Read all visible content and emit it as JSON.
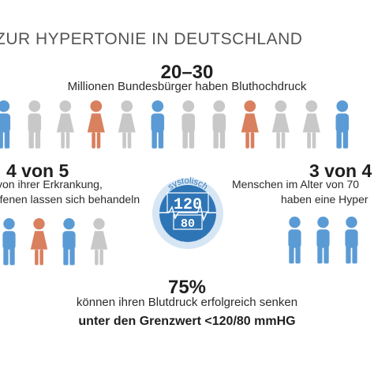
{
  "header": {
    "title": "ZUR HYPERTONIE IN DEUTSCHLAND"
  },
  "stat_top": {
    "value": "20–30",
    "text": "Millionen Bundesbürger haben Bluthochdruck"
  },
  "stat_left": {
    "value": "4 von 5",
    "line1": "von ihrer Erkrankung,",
    "line2": "ffenen lassen sich behandeln"
  },
  "stat_right": {
    "value": "3 von 4",
    "line1": "Menschen im Alter von 70",
    "line2": "haben eine Hyper"
  },
  "gauge": {
    "top_label": "systolisch",
    "big": "120",
    "small": "80",
    "bottom_label": "diastolisch"
  },
  "stat_bottom": {
    "value": "75%",
    "line1": "können ihren Blutdruck erfolgreich senken",
    "line2": "unter den Grenzwert <120/80 mmHG"
  },
  "colors": {
    "blue": "#5b9bd5",
    "orange": "#d9805f",
    "gray": "#c8c8c8",
    "dark_blue": "#2e75b6"
  }
}
